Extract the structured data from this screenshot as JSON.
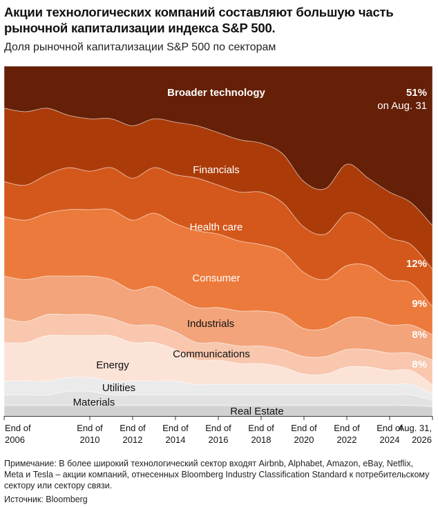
{
  "title": "Акции технологических компаний составляют большую часть рыночной капитализации индекса S&P 500.",
  "subtitle": "Доля рыночной капитализации S&P 500 по секторам",
  "note": "Примечание: В более широкий технологический сектор входят Airbnb, Alphabet, Amazon, eBay, Netflix, Meta и Tesla – акции компаний, отнесенных Bloomberg Industry Classification Standard к потребительскому сектору или сектору связи.",
  "source": "Источник: Bloomberg",
  "chart_data": {
    "type": "area",
    "stacking": "100% stacked",
    "x": [
      2006,
      2007,
      2008,
      2009,
      2010,
      2011,
      2012,
      2013,
      2014,
      2015,
      2016,
      2017,
      2018,
      2019,
      2020,
      2021,
      2022,
      2023,
      2024,
      2025,
      2026
    ],
    "x_tick_labels": [
      {
        "x": 2006,
        "lines": [
          "End of",
          "2006"
        ]
      },
      {
        "x": 2010,
        "lines": [
          "End of",
          "2010"
        ]
      },
      {
        "x": 2012,
        "lines": [
          "End of",
          "2012"
        ]
      },
      {
        "x": 2014,
        "lines": [
          "End of",
          "2014"
        ]
      },
      {
        "x": 2016,
        "lines": [
          "End of",
          "2016"
        ]
      },
      {
        "x": 2018,
        "lines": [
          "End of",
          "2018"
        ]
      },
      {
        "x": 2020,
        "lines": [
          "End of",
          "2020"
        ]
      },
      {
        "x": 2022,
        "lines": [
          "End of",
          "2022"
        ]
      },
      {
        "x": 2024,
        "lines": [
          "End of",
          "2024"
        ]
      },
      {
        "x": 2026,
        "lines": [
          "Aug. 31,",
          "2026"
        ]
      }
    ],
    "ylim": [
      0,
      100
    ],
    "grid": false,
    "series": [
      {
        "name": "Real Estate",
        "color": "#d2d2d2",
        "values": [
          3,
          3,
          3,
          3,
          3,
          3,
          3,
          3,
          3,
          3,
          3,
          3,
          3,
          3,
          3,
          3,
          3,
          3,
          3,
          3,
          3
        ]
      },
      {
        "name": "Materials",
        "color": "#e2e2e2",
        "values": [
          3,
          3,
          3,
          4,
          4,
          3,
          3,
          3,
          3,
          3,
          3,
          3,
          3,
          3,
          3,
          3,
          3,
          3,
          3,
          3,
          2
        ]
      },
      {
        "name": "Utilities",
        "color": "#ebebeb",
        "values": [
          4,
          4,
          4,
          4,
          4,
          4,
          4,
          4,
          4,
          3,
          3,
          3,
          3,
          3,
          3,
          3,
          3,
          3,
          3,
          3,
          2
        ]
      },
      {
        "name": "Energy",
        "color": "#fbe3d8",
        "values": [
          11,
          11,
          13,
          12,
          12,
          13,
          11,
          11,
          9,
          7,
          7,
          6,
          6,
          5,
          3,
          3,
          5,
          5,
          4,
          4,
          3
        ]
      },
      {
        "name": "Communications",
        "color": "#f8c7ad",
        "values": [
          7,
          6,
          6,
          6,
          6,
          5,
          5,
          5,
          5,
          5,
          5,
          5,
          5,
          5,
          5,
          5,
          5,
          5,
          5,
          5,
          8
        ]
      },
      {
        "name": "Industrials",
        "color": "#f3a47a",
        "values": [
          12,
          12,
          11,
          11,
          11,
          11,
          10,
          11,
          10,
          10,
          10,
          10,
          10,
          10,
          8,
          8,
          9,
          9,
          8,
          8,
          8
        ]
      },
      {
        "name": "Consumer",
        "color": "#ec7a3c",
        "values": [
          17,
          17,
          18,
          19,
          19,
          20,
          20,
          21,
          21,
          22,
          21,
          20,
          19,
          18,
          16,
          14,
          15,
          15,
          13,
          12,
          9
        ]
      },
      {
        "name": "Health care",
        "color": "#d4581b",
        "values": [
          10,
          10,
          11,
          12,
          11,
          12,
          12,
          13,
          14,
          15,
          14,
          14,
          15,
          14,
          13,
          13,
          15,
          13,
          12,
          11,
          12
        ]
      },
      {
        "name": "Financials",
        "color": "#ab3c0a",
        "values": [
          21,
          21,
          19,
          15,
          15,
          14,
          15,
          14,
          15,
          15,
          15,
          15,
          14,
          14,
          13,
          13,
          14,
          12,
          13,
          12,
          14
        ]
      },
      {
        "name": "Broader technology",
        "color": "#652007",
        "values": [
          12,
          13,
          12,
          14,
          15,
          15,
          17,
          15,
          16,
          17,
          19,
          21,
          22,
          25,
          33,
          35,
          28,
          32,
          36,
          39,
          51
        ]
      }
    ],
    "annotations": {
      "broader_tech_end": [
        "51%",
        "on Aug. 31"
      ],
      "end_values": [
        "12%",
        "9%",
        "8%",
        "8%"
      ]
    }
  }
}
